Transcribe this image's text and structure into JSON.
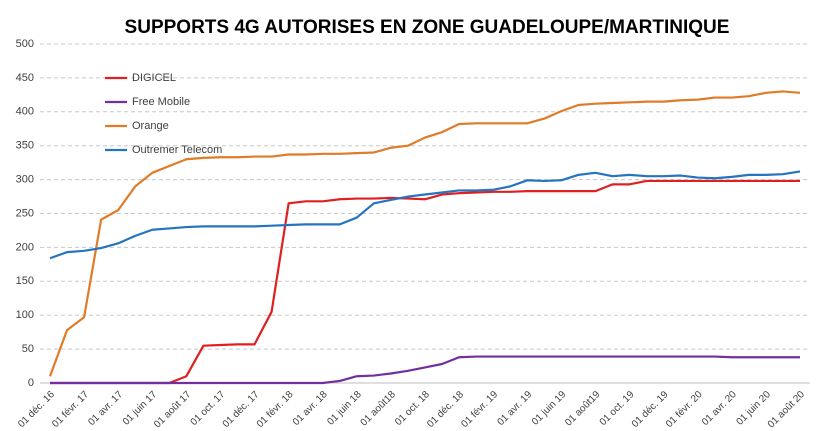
{
  "chart_data": {
    "type": "line",
    "title": "SUPPORTS 4G AUTORISES EN ZONE GUADELOUPE/MARTINIQUE",
    "categories": [
      "01 déc. 16",
      null,
      "01 févr. 17",
      null,
      "01 avr. 17",
      null,
      "01 juin 17",
      null,
      "01 août 17",
      null,
      "01 oct. 17",
      null,
      "01 déc. 17",
      null,
      "01 févr. 18",
      null,
      "01 avr. 18",
      null,
      "01 juin 18",
      null,
      "01 août18",
      null,
      "01 oct. 18",
      null,
      "01 déc. 18",
      null,
      "01 févr. 19",
      null,
      "01 avr. 19",
      null,
      "01 juin 19",
      null,
      "01 août19",
      null,
      "01 oct. 19",
      null,
      "01 déc. 19",
      null,
      "01 févr. 20",
      null,
      "01 avr. 20",
      null,
      "01 juin 20",
      null,
      "01 août 20"
    ],
    "series": [
      {
        "name": "DIGICEL",
        "color": "#e02020",
        "values": [
          0,
          0,
          0,
          0,
          0,
          0,
          0,
          0,
          10,
          55,
          56,
          57,
          57,
          105,
          265,
          268,
          268,
          271,
          272,
          272,
          273,
          272,
          271,
          278,
          280,
          281,
          282,
          282,
          283,
          283,
          283,
          283,
          283,
          293,
          293,
          298,
          298,
          298,
          298,
          298,
          298,
          298,
          298,
          298,
          298
        ]
      },
      {
        "name": "Free Mobile",
        "color": "#7030a0",
        "values": [
          0,
          0,
          0,
          0,
          0,
          0,
          0,
          0,
          0,
          0,
          0,
          0,
          0,
          0,
          0,
          0,
          0,
          3,
          10,
          11,
          14,
          18,
          23,
          28,
          38,
          39,
          39,
          39,
          39,
          39,
          39,
          39,
          39,
          39,
          39,
          39,
          39,
          39,
          39,
          39,
          38,
          38,
          38,
          38,
          38
        ]
      },
      {
        "name": "Orange",
        "color": "#e07b28",
        "values": [
          10,
          78,
          97,
          241,
          255,
          290,
          310,
          320,
          330,
          332,
          333,
          333,
          334,
          334,
          337,
          337,
          338,
          338,
          339,
          340,
          347,
          350,
          362,
          370,
          382,
          383,
          383,
          383,
          383,
          390,
          401,
          410,
          412,
          413,
          414,
          415,
          415,
          417,
          418,
          421,
          421,
          423,
          428,
          430,
          428
        ]
      },
      {
        "name": "Outremer Telecom",
        "color": "#2474c0",
        "values": [
          184,
          193,
          195,
          199,
          206,
          217,
          226,
          228,
          230,
          231,
          231,
          231,
          231,
          232,
          233,
          234,
          234,
          234,
          244,
          265,
          270,
          275,
          278,
          281,
          284,
          284,
          285,
          290,
          299,
          298,
          299,
          307,
          310,
          305,
          307,
          305,
          305,
          306,
          303,
          302,
          304,
          307,
          307,
          308,
          312
        ]
      }
    ],
    "ylim": [
      0,
      500
    ],
    "yticks": [
      0,
      50,
      100,
      150,
      200,
      250,
      300,
      350,
      400,
      450,
      500
    ],
    "grid": true,
    "legend": "top-left"
  }
}
